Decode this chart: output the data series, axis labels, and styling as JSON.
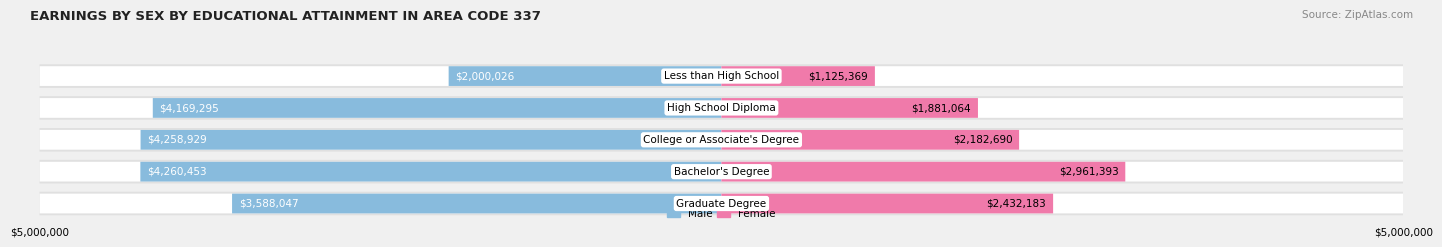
{
  "title": "EARNINGS BY SEX BY EDUCATIONAL ATTAINMENT IN AREA CODE 337",
  "source": "Source: ZipAtlas.com",
  "categories": [
    "Less than High School",
    "High School Diploma",
    "College or Associate's Degree",
    "Bachelor's Degree",
    "Graduate Degree"
  ],
  "male_values": [
    2000026,
    4169295,
    4258929,
    4260453,
    3588047
  ],
  "female_values": [
    1125369,
    1881064,
    2182690,
    2961393,
    2432183
  ],
  "male_labels": [
    "$2,000,026",
    "$4,169,295",
    "$4,258,929",
    "$4,260,453",
    "$3,588,047"
  ],
  "female_labels": [
    "$1,125,369",
    "$1,881,064",
    "$2,182,690",
    "$2,961,393",
    "$2,432,183"
  ],
  "male_color": "#88bbdd",
  "female_color": "#f07aaa",
  "background_color": "#f0f0f0",
  "row_bg_color": "#e8e8e8",
  "xlim": 5000000,
  "xlabel_left": "$5,000,000",
  "xlabel_right": "$5,000,000",
  "legend_male": "Male",
  "legend_female": "Female",
  "title_fontsize": 9.5,
  "source_fontsize": 7.5,
  "bar_height": 0.62,
  "label_fontsize": 7.5,
  "cat_fontsize": 7.5
}
